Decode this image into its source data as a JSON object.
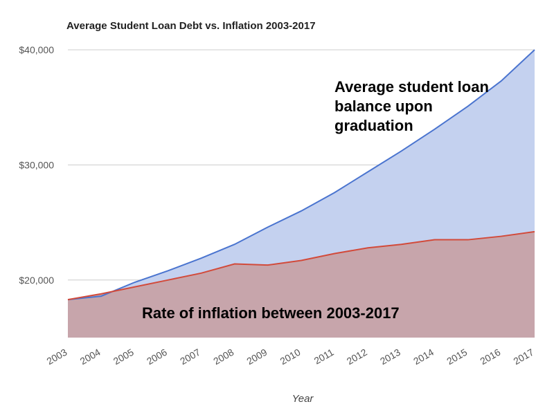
{
  "chart_data": {
    "type": "area",
    "title": "Average Student Loan Debt vs. Inflation 2003-2017",
    "xlabel": "Year",
    "ylabel": "",
    "x": [
      "2003",
      "2004",
      "2005",
      "2006",
      "2007",
      "2008",
      "2009",
      "2010",
      "2011",
      "2012",
      "2013",
      "2014",
      "2015",
      "2016",
      "2017"
    ],
    "ylim": [
      15000,
      40000
    ],
    "yticks": [
      {
        "value": 20000,
        "label": "$20,000"
      },
      {
        "value": 30000,
        "label": "$30,000"
      },
      {
        "value": 40000,
        "label": "$40,000"
      }
    ],
    "grid": true,
    "legend": "none",
    "series": [
      {
        "values": [
          18300,
          18600,
          19800,
          20800,
          21900,
          23100,
          24600,
          26000,
          27600,
          29400,
          31200,
          33100,
          35100,
          37300,
          40000
        ],
        "color": "#4a74cf",
        "fill": "#c4d1ef"
      },
      {
        "values": [
          18300,
          18800,
          19400,
          20000,
          20600,
          21400,
          21300,
          21700,
          22300,
          22800,
          23100,
          23500,
          23500,
          23800,
          24200
        ],
        "color": "#d24a3a",
        "fill": "#c7a5ab"
      }
    ],
    "annotations": [
      {
        "id": "debt",
        "lines": [
          "Average student loan",
          "balance upon",
          "graduation"
        ]
      },
      {
        "id": "inflation",
        "lines": [
          "Rate of inflation between 2003-2017"
        ]
      }
    ]
  }
}
